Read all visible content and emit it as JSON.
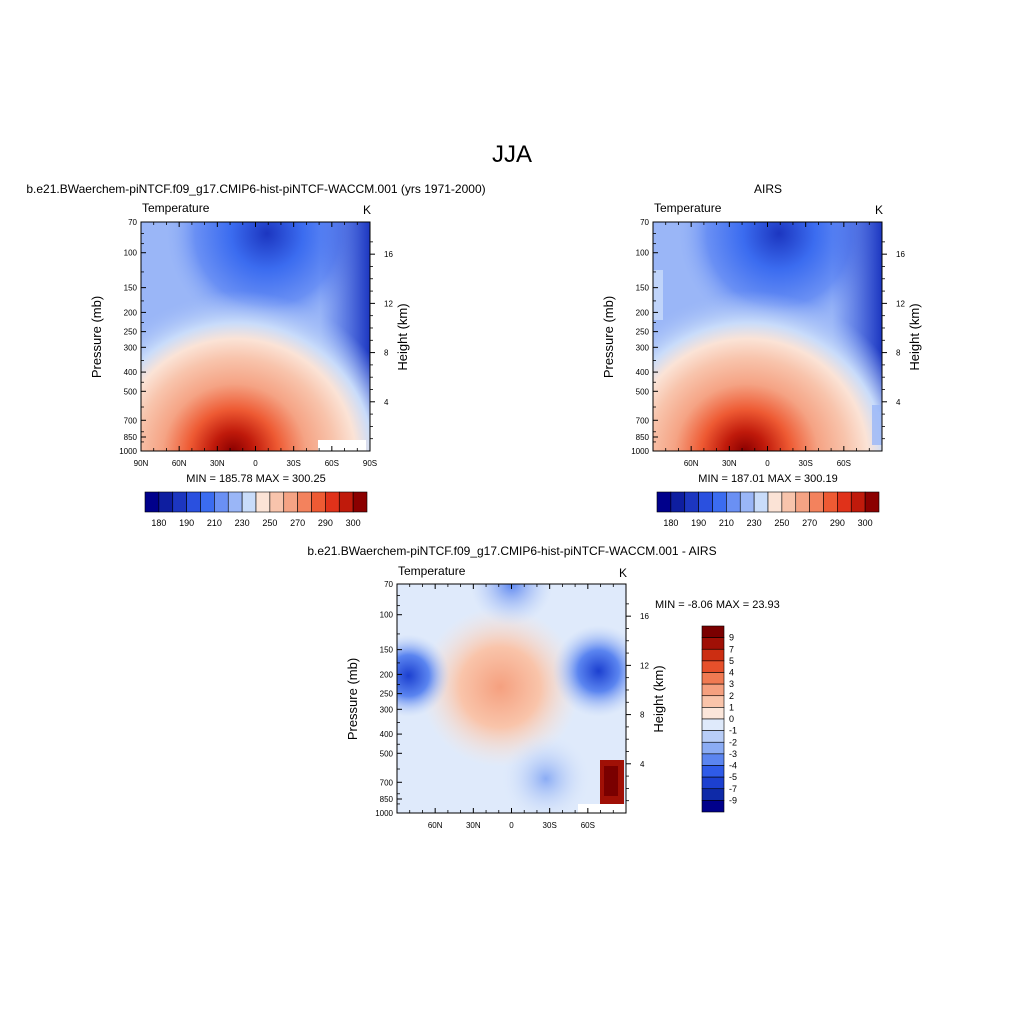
{
  "figure_title": "JJA",
  "panels": [
    {
      "title": "b.e21.BWaerchem-piNTCF.f09_g17.CMIP6-hist-piNTCF-WACCM.001 (yrs 1971-2000)",
      "left_label": "Temperature",
      "right_label": "K",
      "stats": "MIN = 185.78  MAX = 300.25"
    },
    {
      "title": "AIRS",
      "left_label": "Temperature",
      "right_label": "K",
      "stats": "MIN = 187.01  MAX = 300.19"
    },
    {
      "title": "b.e21.BWaerchem-piNTCF.f09_g17.CMIP6-hist-piNTCF-WACCM.001 - AIRS",
      "left_label": "Temperature",
      "right_label": "K",
      "stats": "MIN =  -8.06  MAX =  23.93"
    }
  ],
  "colors": {
    "abs_scale": [
      "#00008b",
      "#0e1ea0",
      "#1c36c0",
      "#2a50df",
      "#3b6cf0",
      "#6a90f4",
      "#9ab6f7",
      "#c9dcfa",
      "#fbe3d6",
      "#f8c4ac",
      "#f5a384",
      "#f3825d",
      "#ee5a33",
      "#e0321a",
      "#c01a0b",
      "#8b0000"
    ],
    "diff_scale": [
      "#00008b",
      "#0e2aa8",
      "#1c40d0",
      "#2f5be8",
      "#5b85f0",
      "#8bacf4",
      "#b8cdf7",
      "#dfeafb",
      "#fbe6da",
      "#f9c4aa",
      "#f5a07f",
      "#f07a52",
      "#e6502b",
      "#cc2e12",
      "#a01006",
      "#7a0000"
    ]
  },
  "chart_data": [
    {
      "type": "heatmap",
      "title": "b.e21.BWaerchem-piNTCF.f09_g17.CMIP6-hist-piNTCF-WACCM.001 (yrs 1971-2000)",
      "xlabel": "",
      "ylabel": "Pressure (mb)",
      "y2label": "Height (km)",
      "xticks": [
        "90N",
        "60N",
        "30N",
        "0",
        "30S",
        "60S",
        "90S"
      ],
      "yticks": [
        70,
        100,
        150,
        200,
        250,
        300,
        400,
        500,
        700,
        850,
        1000
      ],
      "y2ticks": [
        4,
        8,
        12,
        16
      ],
      "ylim": [
        1000,
        70
      ],
      "colorbar_labels": [
        "180",
        "190",
        "210",
        "230",
        "250",
        "270",
        "290",
        "300"
      ],
      "min": 185.78,
      "max": 300.25
    },
    {
      "type": "heatmap",
      "title": "AIRS",
      "xlabel": "",
      "ylabel": "Pressure (mb)",
      "y2label": "Height (km)",
      "xticks": [
        "60N",
        "30N",
        "0",
        "30S",
        "60S"
      ],
      "yticks": [
        70,
        100,
        150,
        200,
        250,
        300,
        400,
        500,
        700,
        850,
        1000
      ],
      "y2ticks": [
        4,
        8,
        12,
        16
      ],
      "ylim": [
        1000,
        70
      ],
      "colorbar_labels": [
        "180",
        "190",
        "210",
        "230",
        "250",
        "270",
        "290",
        "300"
      ],
      "min": 187.01,
      "max": 300.19
    },
    {
      "type": "heatmap",
      "title": "b.e21.BWaerchem-piNTCF.f09_g17.CMIP6-hist-piNTCF-WACCM.001 - AIRS",
      "xlabel": "",
      "ylabel": "Pressure (mb)",
      "y2label": "Height (km)",
      "xticks": [
        "60N",
        "30N",
        "0",
        "30S",
        "60S"
      ],
      "yticks": [
        70,
        100,
        150,
        200,
        250,
        300,
        400,
        500,
        700,
        850,
        1000
      ],
      "y2ticks": [
        4,
        8,
        12,
        16
      ],
      "ylim": [
        1000,
        70
      ],
      "colorbar_labels": [
        "9",
        "7",
        "5",
        "4",
        "3",
        "2",
        "1",
        "0",
        "-1",
        "-2",
        "-3",
        "-4",
        "-5",
        "-7",
        "-9"
      ],
      "min": -8.06,
      "max": 23.93
    }
  ]
}
